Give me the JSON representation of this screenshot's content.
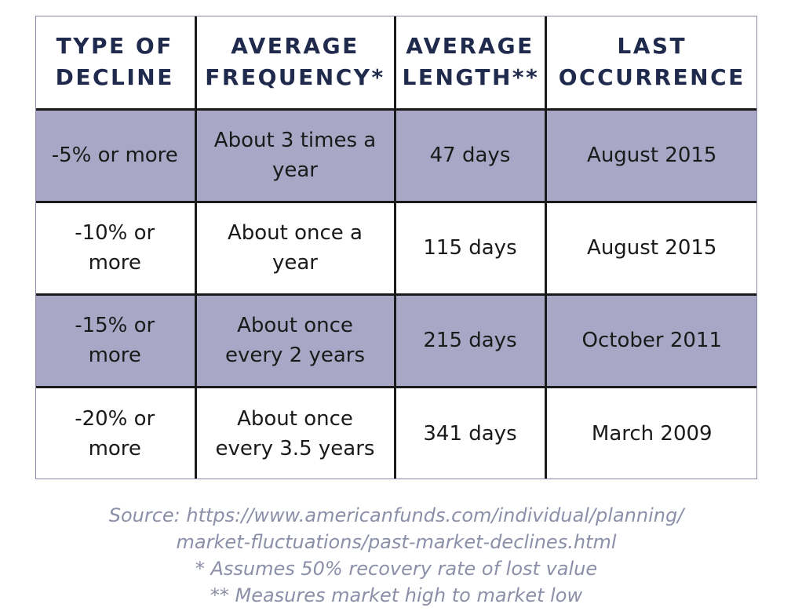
{
  "table": {
    "headers": [
      [
        "TYPE OF",
        "DECLINE"
      ],
      [
        "AVERAGE",
        "FREQUENCY*"
      ],
      [
        "AVERAGE",
        "LENGTH**"
      ],
      [
        "LAST",
        "OCCURRENCE"
      ]
    ],
    "rows": [
      {
        "decline": [
          "-5% or more"
        ],
        "frequency": [
          "About 3 times a",
          "year"
        ],
        "length": "47 days",
        "last": "August 2015"
      },
      {
        "decline": [
          "-10% or",
          "more"
        ],
        "frequency": [
          "About once a",
          "year"
        ],
        "length": "115 days",
        "last": "August 2015"
      },
      {
        "decline": [
          "-15% or",
          "more"
        ],
        "frequency": [
          "About once",
          "every 2 years"
        ],
        "length": "215 days",
        "last": "October 2011"
      },
      {
        "decline": [
          "-20% or",
          "more"
        ],
        "frequency": [
          "About once",
          "every 3.5 years"
        ],
        "length": "341 days",
        "last": "March 2009"
      }
    ],
    "colors": {
      "header_text": "#1f2a4d",
      "shaded_row": "#a8a8c6",
      "border": "#1a1a1a"
    }
  },
  "notes": {
    "source_line1": "Source: https://www.americanfunds.com/individual/planning/",
    "source_line2": "market-fluctuations/past-market-declines.html",
    "footnote1": "* Assumes 50% recovery rate of lost value",
    "footnote2": "** Measures market high to market low",
    "color": "#8b8fa8"
  }
}
